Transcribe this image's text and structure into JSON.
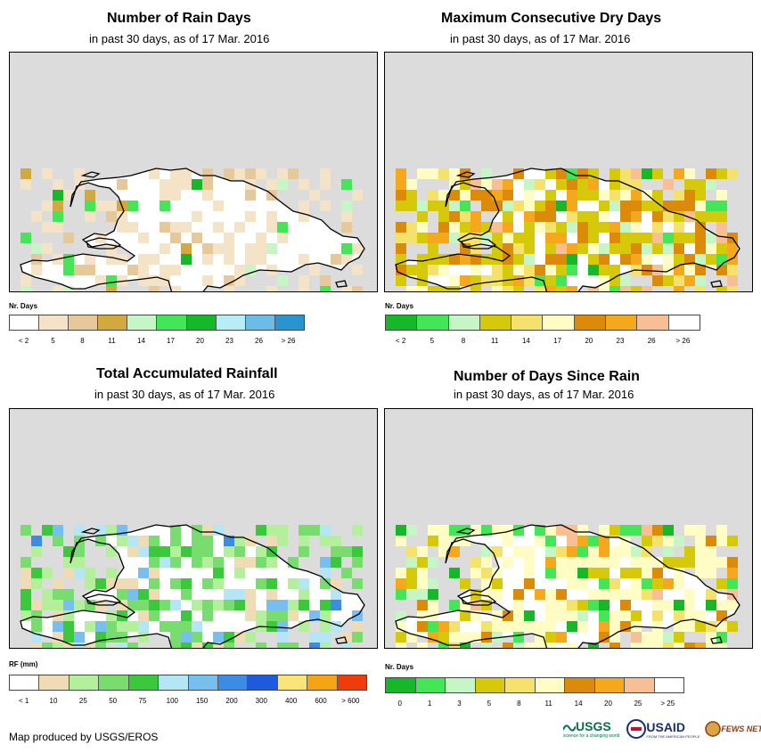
{
  "credit": "Map produced by USGS/EROS",
  "logos": {
    "usgs": "USGS",
    "usaid": "USAID",
    "fews": "FEWS NET",
    "usgs_tagline": "science for a changing world",
    "usaid_tagline": "FROM THE AMERICAN PEOPLE"
  },
  "colors": {
    "ocean": "#dcdcdc",
    "land": "#ffffff",
    "outline": "#000000"
  },
  "panels": [
    {
      "id": "rain-days",
      "title": "Number of Rain Days",
      "subtitle": "in past 30 days, as of 17 Mar. 2016",
      "legend": {
        "title": "Nr. Days",
        "colors": [
          "#ffffff",
          "#f5e3c8",
          "#e6c99a",
          "#d2a93f",
          "#c6f5c6",
          "#44e556",
          "#16b82a",
          "#b7eef5",
          "#6bbde8",
          "#2894d0"
        ],
        "labels": [
          "< 2",
          "5",
          "8",
          "11",
          "14",
          "17",
          "20",
          "23",
          "26",
          "> 26"
        ]
      }
    },
    {
      "id": "max-dry",
      "title": "Maximum Consecutive Dry Days",
      "subtitle": "in past 30 days, as of 17 Mar. 2016",
      "legend": {
        "title": "Nr. Days",
        "colors": [
          "#16b82a",
          "#44e556",
          "#c6f5c6",
          "#d6c90a",
          "#f5e26c",
          "#fffdc4",
          "#dc8a0a",
          "#f5a81c",
          "#f8bf94",
          "#ffffff"
        ],
        "labels": [
          "< 2",
          "5",
          "8",
          "11",
          "14",
          "17",
          "20",
          "23",
          "26",
          "> 26"
        ]
      }
    },
    {
      "id": "rainfall",
      "title": "Total Accumulated Rainfall",
      "subtitle": "in past 30 days, as of 17 Mar. 2016",
      "legend": {
        "title": "RF (mm)",
        "colors": [
          "#ffffff",
          "#f0dcb4",
          "#b4f09c",
          "#78dc6e",
          "#3cc83c",
          "#b4e6f5",
          "#78beef",
          "#3c8ce6",
          "#1e5adc",
          "#fae678",
          "#f5a514",
          "#f03c0a"
        ],
        "labels": [
          "< 1",
          "10",
          "25",
          "50",
          "75",
          "100",
          "150",
          "200",
          "300",
          "400",
          "600",
          "> 600"
        ]
      }
    },
    {
      "id": "since-rain",
      "title": "Number of Days Since Rain",
      "subtitle": "in past 30 days, as of 17 Mar. 2016",
      "legend": {
        "title": "Nr. Days",
        "colors": [
          "#16b82a",
          "#44e556",
          "#c6f5c6",
          "#d6c90a",
          "#f5e26c",
          "#fffdc4",
          "#dc8a0a",
          "#f5a81c",
          "#f8bf94",
          "#ffffff"
        ],
        "labels": [
          "0",
          "1",
          "3",
          "5",
          "8",
          "11",
          "14",
          "20",
          "25",
          "> 25"
        ]
      }
    }
  ]
}
